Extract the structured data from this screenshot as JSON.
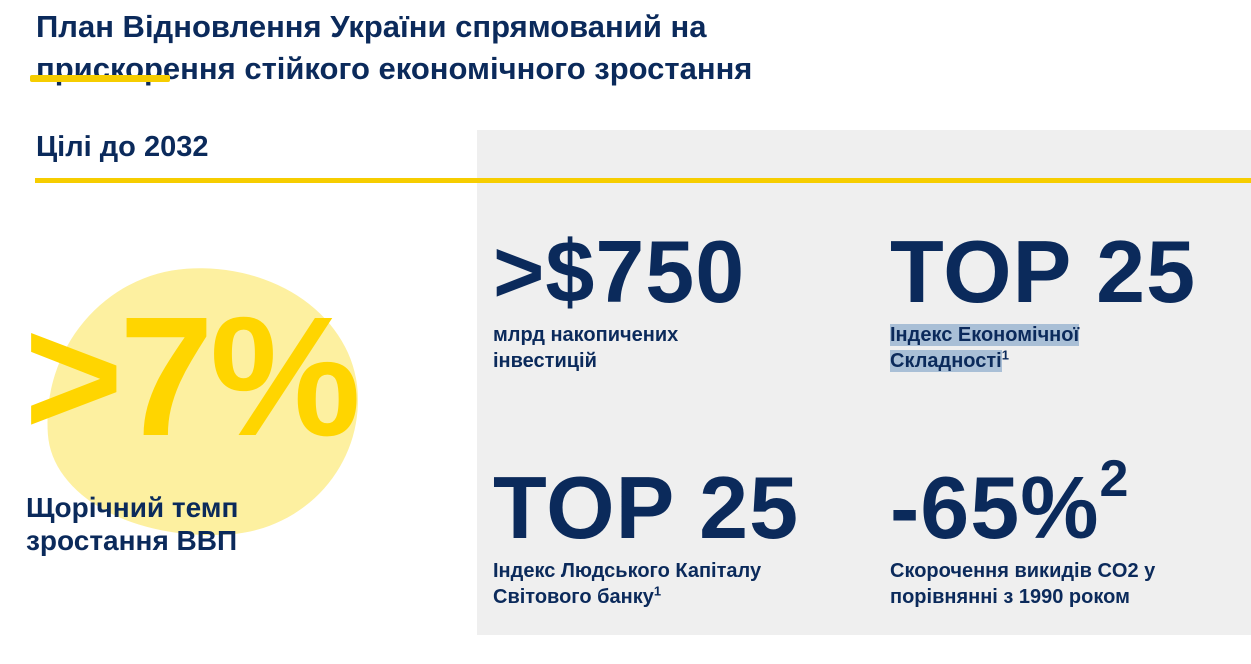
{
  "title": {
    "line1": "План Відновлення України спрямований на",
    "line2": "прискорення стійкого економічного зростання"
  },
  "section": {
    "title": "Цілі до 2032"
  },
  "growth": {
    "value": ">7%",
    "caption_line1": "Щорічний темп",
    "caption_line2": "зростання ВВП"
  },
  "stats": [
    {
      "value": ">$750",
      "value_sup": "",
      "caption_line1": "млрд накопичених",
      "caption_line2": "інвестицій",
      "footnote": ""
    },
    {
      "value": "TOP 25",
      "value_sup": "",
      "caption_line1": "Індекс Економічної",
      "caption_line2": "Складності",
      "footnote": "1"
    },
    {
      "value": "TOP 25",
      "value_sup": "",
      "caption_line1": "Індекс Людського Капіталу",
      "caption_line2": "Світового банку",
      "footnote": "1"
    },
    {
      "value": "-65%",
      "value_sup": "2",
      "caption_line1": "Скорочення викидів CO2 у",
      "caption_line2": "порівнянні з 1990 роком",
      "footnote": ""
    }
  ],
  "colors": {
    "navy": "#0b2a5b",
    "yellow": "#ffd500",
    "panel_grey": "#efefef",
    "blob_yellow": "#fdf0a0",
    "highlight_blue": "#a9bfd6"
  }
}
